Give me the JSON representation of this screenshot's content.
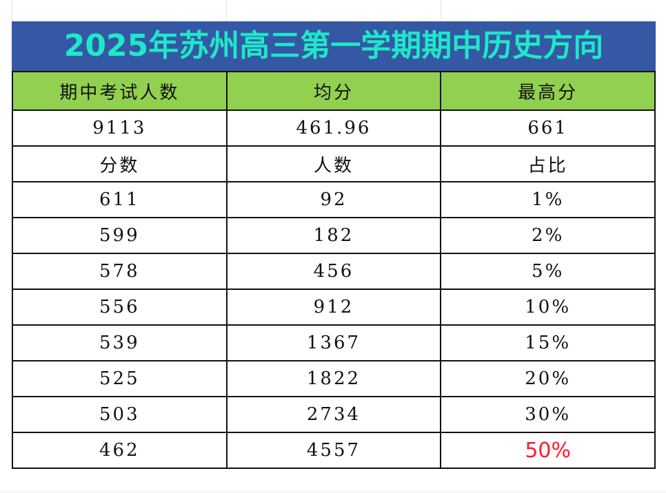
{
  "title": "2025年苏州高三第一学期期中历史方向",
  "summary": {
    "headers": [
      "期中考试人数",
      "均分",
      "最高分"
    ],
    "values": [
      "9113",
      "461.96",
      "661"
    ]
  },
  "distribution": {
    "headers": [
      "分数",
      "人数",
      "占比"
    ],
    "rows": [
      [
        "611",
        "92",
        "1%"
      ],
      [
        "599",
        "182",
        "2%"
      ],
      [
        "578",
        "456",
        "5%"
      ],
      [
        "556",
        "912",
        "10%"
      ],
      [
        "539",
        "1367",
        "15%"
      ],
      [
        "525",
        "1822",
        "20%"
      ],
      [
        "503",
        "2734",
        "30%"
      ],
      [
        "462",
        "4557",
        "50%"
      ]
    ]
  },
  "colors": {
    "title_bg": "#3558a5",
    "title_text": "#1ee8c8",
    "header_bg": "#92d050",
    "highlight": "#ff1a2a"
  }
}
